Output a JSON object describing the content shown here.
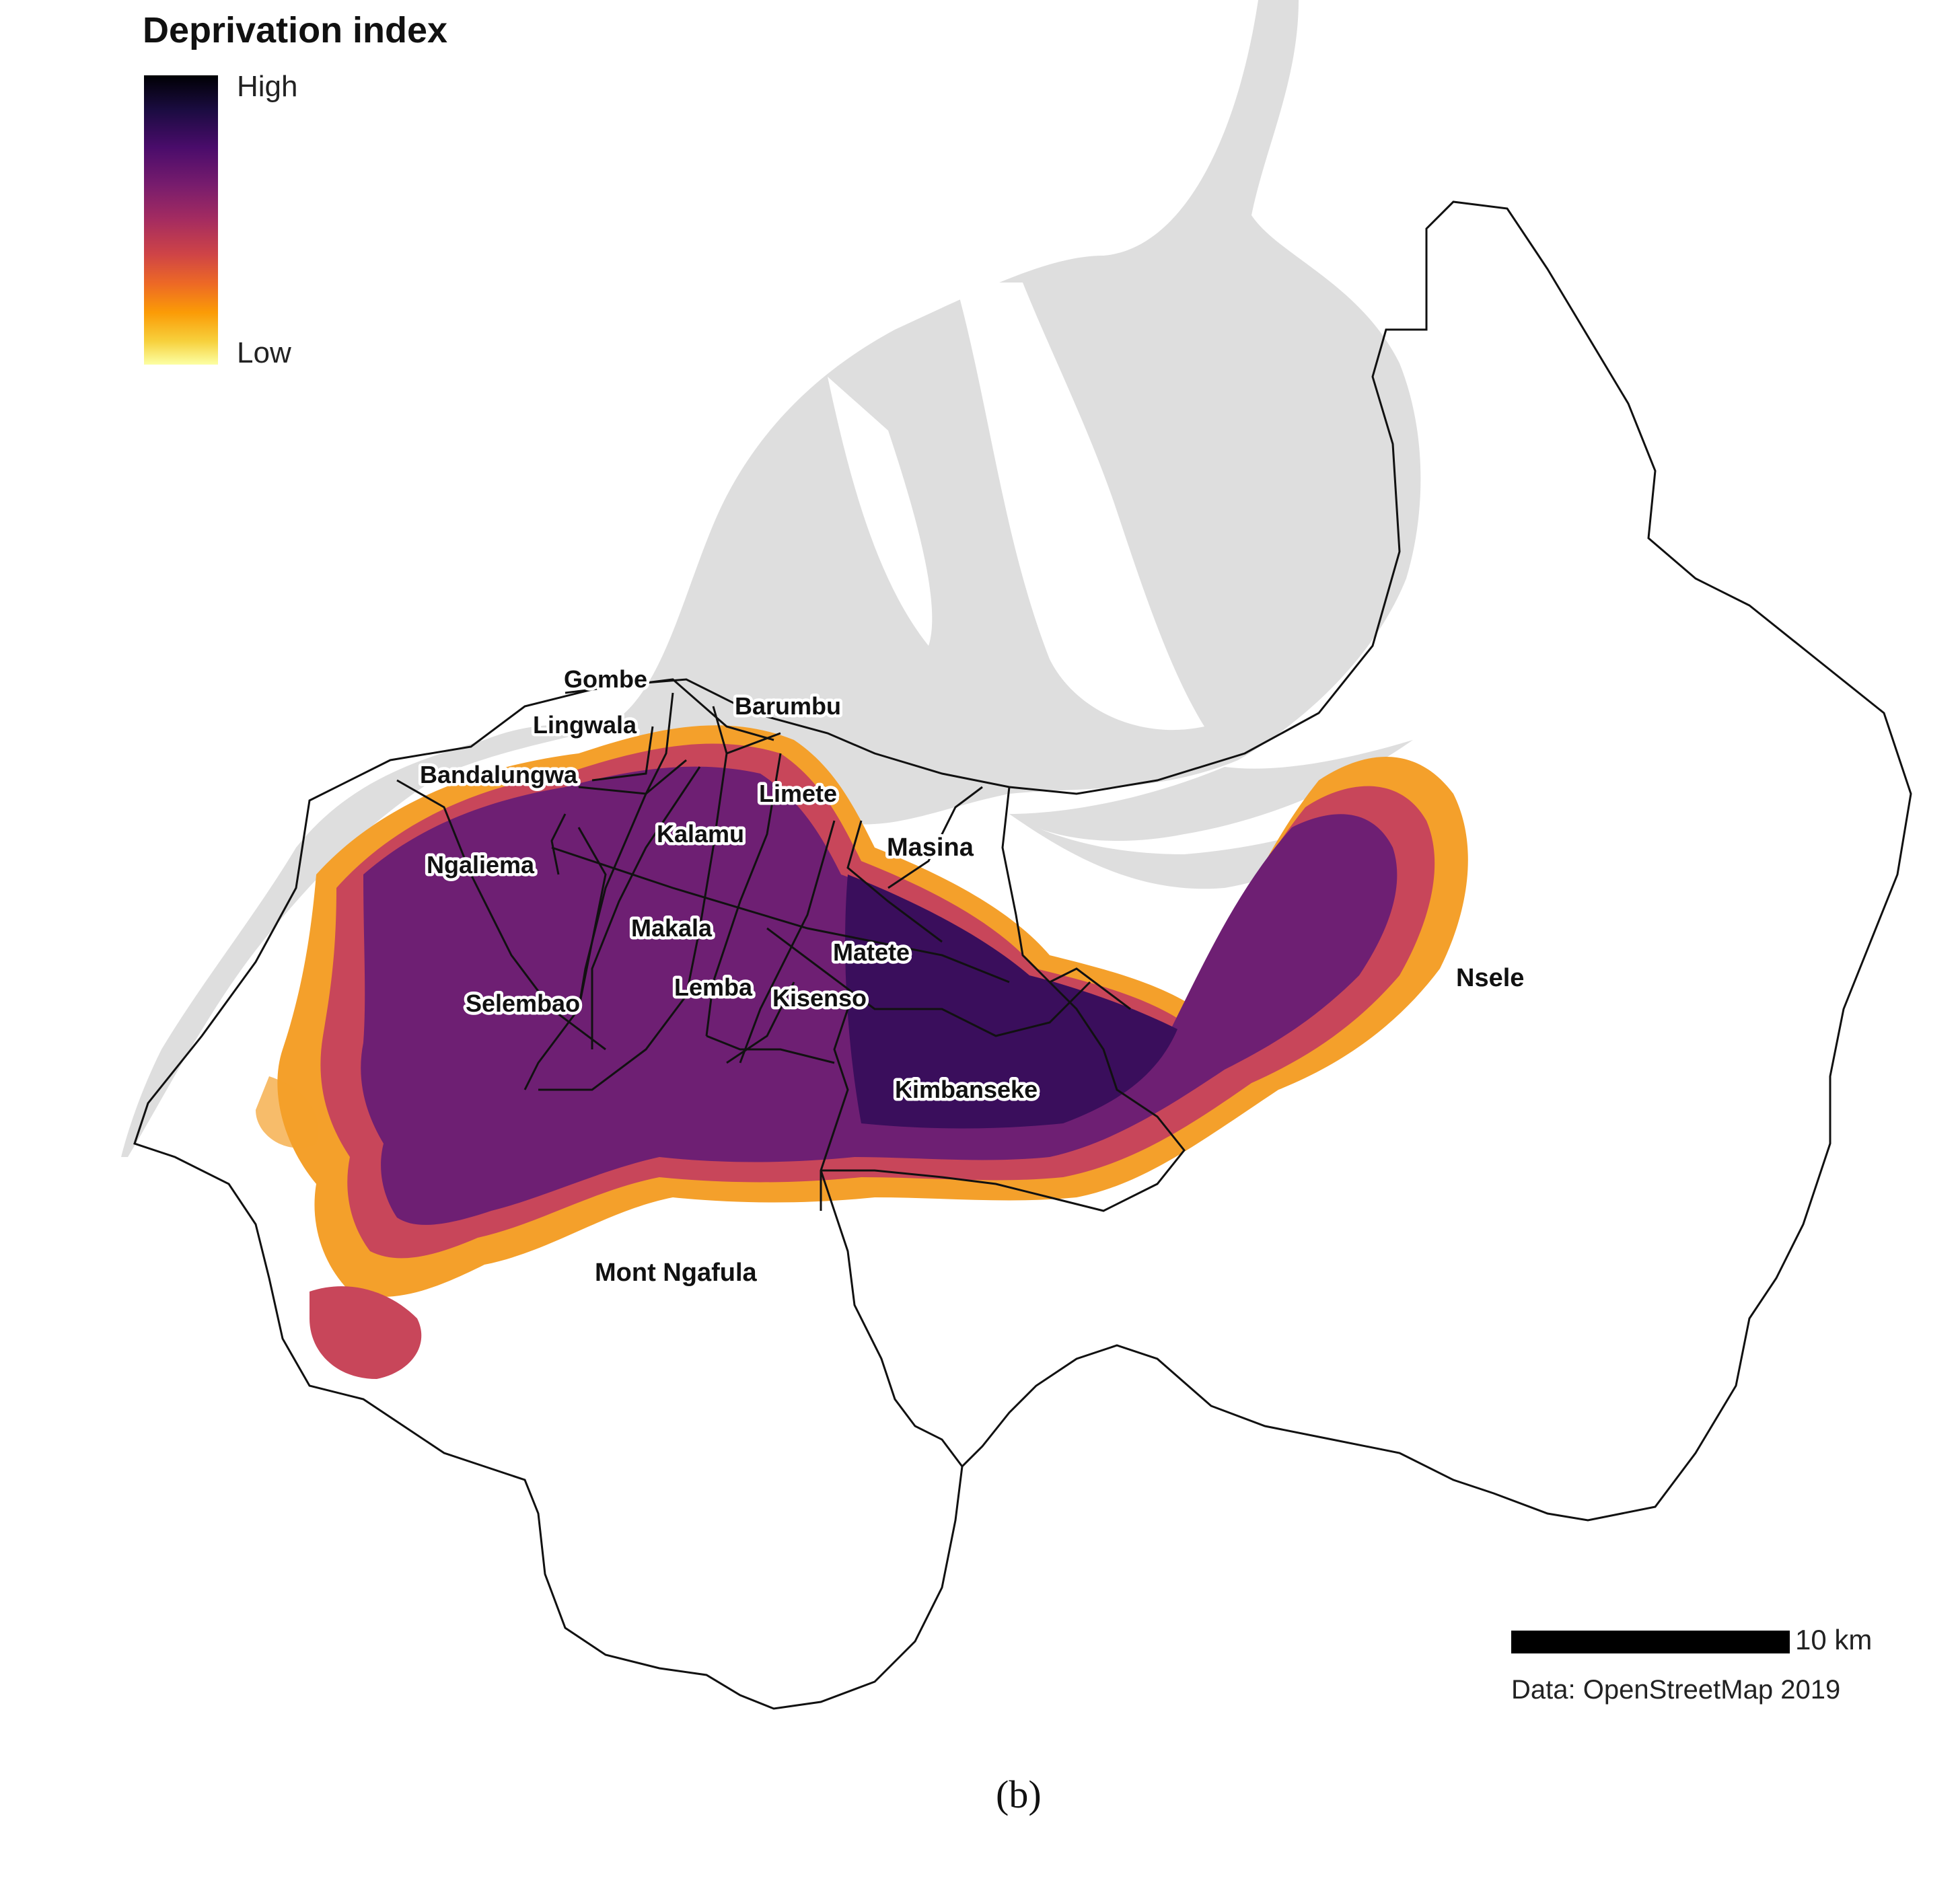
{
  "legend": {
    "title": "Deprivation index",
    "high_label": "High",
    "low_label": "Low",
    "colors": [
      "#000004",
      "#4a0c6b",
      "#a52c60",
      "#ed6925",
      "#fb9b06",
      "#fcffa4"
    ]
  },
  "communes": [
    "Gombe",
    "Barumbu",
    "Lingwala",
    "Bandalungwa",
    "Limete",
    "Kalamu",
    "Masina",
    "Ngaliema",
    "Makala",
    "Matete",
    "Lemba",
    "Kisenso",
    "Selembao",
    "Nsele",
    "Kimbanseke",
    "Mont Ngafula"
  ],
  "scale": {
    "label": "10 km"
  },
  "credit": "Data: OpenStreetMap 2019",
  "caption": "(b)",
  "colors": {
    "river": "#dedede",
    "boundary": "#111111",
    "high": "#2d0a55",
    "mid": "#8a2a6a",
    "low": "#f5a623"
  }
}
